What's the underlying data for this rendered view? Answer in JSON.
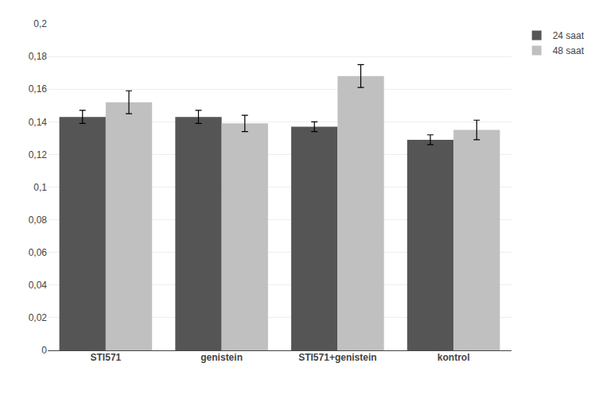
{
  "chart_data": {
    "type": "bar",
    "categories": [
      "STI571",
      "genistein",
      "STI571+genistein",
      "kontrol"
    ],
    "series": [
      {
        "name": "24 saat",
        "color": "#555555",
        "values": [
          0.143,
          0.143,
          0.137,
          0.129
        ],
        "errors": [
          0.004,
          0.004,
          0.003,
          0.003
        ]
      },
      {
        "name": "48 saat",
        "color": "#c0c0c0",
        "values": [
          0.152,
          0.139,
          0.168,
          0.135
        ],
        "errors": [
          0.007,
          0.005,
          0.007,
          0.006
        ]
      }
    ],
    "ylim": [
      0,
      0.2
    ],
    "yticks": [
      0,
      {
        "value": 0.02,
        "label": "0,02"
      },
      {
        "value": 0.04,
        "label": "0,04"
      },
      {
        "value": 0.06,
        "label": "0,06"
      },
      {
        "value": 0.08,
        "label": "0,08"
      },
      {
        "value": 0.1,
        "label": "0,1"
      },
      {
        "value": 0.12,
        "label": "0,12"
      },
      {
        "value": 0.14,
        "label": "0,14"
      },
      {
        "value": 0.16,
        "label": "0,16"
      },
      {
        "value": 0.18,
        "label": "0,18"
      },
      {
        "value": 0.2,
        "label": "0,2"
      }
    ],
    "grid": true,
    "legend": "right"
  }
}
